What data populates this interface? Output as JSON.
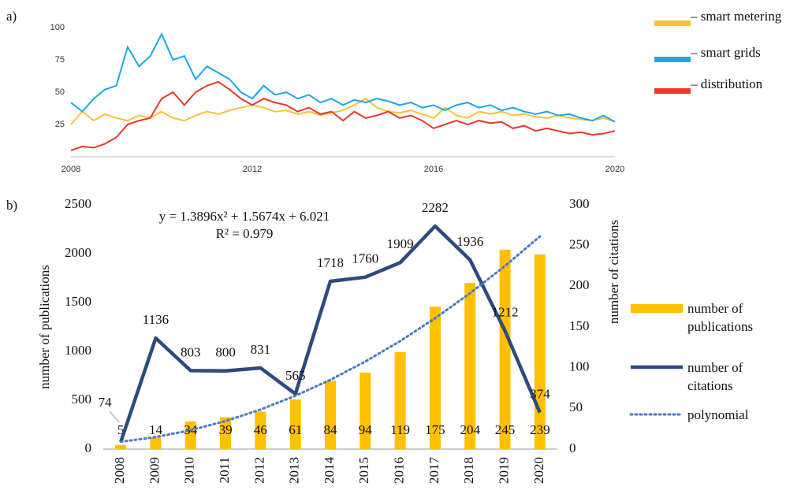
{
  "chart_data": [
    {
      "type": "line",
      "label": "a)",
      "x": [
        2008,
        2008.25,
        2008.5,
        2008.75,
        2009,
        2009.25,
        2009.5,
        2009.75,
        2010,
        2010.25,
        2010.5,
        2010.75,
        2011,
        2011.25,
        2011.5,
        2011.75,
        2012,
        2012.25,
        2012.5,
        2012.75,
        2013,
        2013.25,
        2013.5,
        2013.75,
        2014,
        2014.25,
        2014.5,
        2014.75,
        2015,
        2015.25,
        2015.5,
        2015.75,
        2016,
        2016.25,
        2016.5,
        2016.75,
        2017,
        2017.25,
        2017.5,
        2017.75,
        2018,
        2018.25,
        2018.5,
        2018.75,
        2019,
        2019.25,
        2019.5,
        2019.75,
        2020
      ],
      "xlim": [
        2008,
        2020
      ],
      "xticks": [
        2008,
        2012,
        2016,
        2020
      ],
      "ylim": [
        0,
        100
      ],
      "yticks": [
        25,
        50,
        75,
        100
      ],
      "series": [
        {
          "name": "– smart metering",
          "color": "#f7c23c",
          "values": [
            25,
            35,
            28,
            33,
            30,
            28,
            32,
            30,
            35,
            30,
            28,
            32,
            35,
            33,
            36,
            38,
            40,
            38,
            35,
            36,
            33,
            35,
            32,
            34,
            36,
            40,
            45,
            38,
            35,
            34,
            36,
            33,
            30,
            38,
            32,
            30,
            35,
            33,
            35,
            32,
            33,
            31,
            30,
            32,
            30,
            29,
            28,
            30,
            27
          ]
        },
        {
          "name": "– smart grids",
          "color": "#1fa5e8",
          "values": [
            42,
            35,
            45,
            52,
            55,
            85,
            70,
            78,
            95,
            75,
            78,
            60,
            70,
            65,
            60,
            50,
            45,
            55,
            48,
            50,
            45,
            48,
            42,
            45,
            40,
            44,
            42,
            45,
            43,
            40,
            42,
            38,
            40,
            36,
            40,
            42,
            38,
            40,
            36,
            38,
            35,
            33,
            35,
            32,
            33,
            30,
            28,
            32,
            27
          ]
        },
        {
          "name": "– distribution",
          "color": "#e8392d",
          "values": [
            5,
            8,
            7,
            10,
            15,
            25,
            28,
            30,
            45,
            50,
            40,
            50,
            55,
            58,
            52,
            45,
            40,
            45,
            42,
            40,
            35,
            38,
            33,
            35,
            28,
            35,
            30,
            32,
            35,
            30,
            32,
            28,
            22,
            25,
            28,
            25,
            28,
            26,
            27,
            22,
            24,
            20,
            22,
            20,
            18,
            19,
            17,
            18,
            20
          ]
        }
      ]
    },
    {
      "type": "bar",
      "label": "b)",
      "categories": [
        "2008",
        "2009",
        "2010",
        "2011",
        "2012",
        "2013",
        "2014",
        "2015",
        "2016",
        "2017",
        "2018",
        "2019",
        "2020"
      ],
      "y_label": "number of  publications",
      "y2_label": "number of  citations",
      "ylim": [
        0,
        2500
      ],
      "yticks": [
        0,
        500,
        1000,
        1500,
        2000,
        2500
      ],
      "y2lim": [
        0,
        300
      ],
      "y2ticks": [
        0,
        50,
        100,
        150,
        200,
        250,
        300
      ],
      "annotations": [
        "y = 1.3896x² + 1.5674x + 6.021",
        "R² = 0.979"
      ],
      "series": [
        {
          "name": "number of publications",
          "type": "bar",
          "axis": "y2",
          "color": "#ffc000",
          "data_labels": true,
          "values": [
            5,
            14,
            34,
            39,
            46,
            61,
            84,
            94,
            119,
            175,
            204,
            245,
            239
          ]
        },
        {
          "name": "number of citations",
          "type": "line",
          "color": "#2e4a7d",
          "data_labels": true,
          "values": [
            74,
            1136,
            803,
            800,
            831,
            565,
            1718,
            1760,
            1909,
            2282,
            1936,
            1212,
            374
          ]
        },
        {
          "name": "polynomial",
          "type": "line",
          "style": "dotted",
          "axis": "y2",
          "color": "#4a78c2",
          "data_labels": false,
          "values": [
            9.0,
            14.7,
            23.2,
            34.5,
            48.6,
            65.5,
            85.1,
            107.5,
            132.7,
            160.7,
            191.4,
            224.9,
            261.2
          ]
        }
      ]
    }
  ]
}
